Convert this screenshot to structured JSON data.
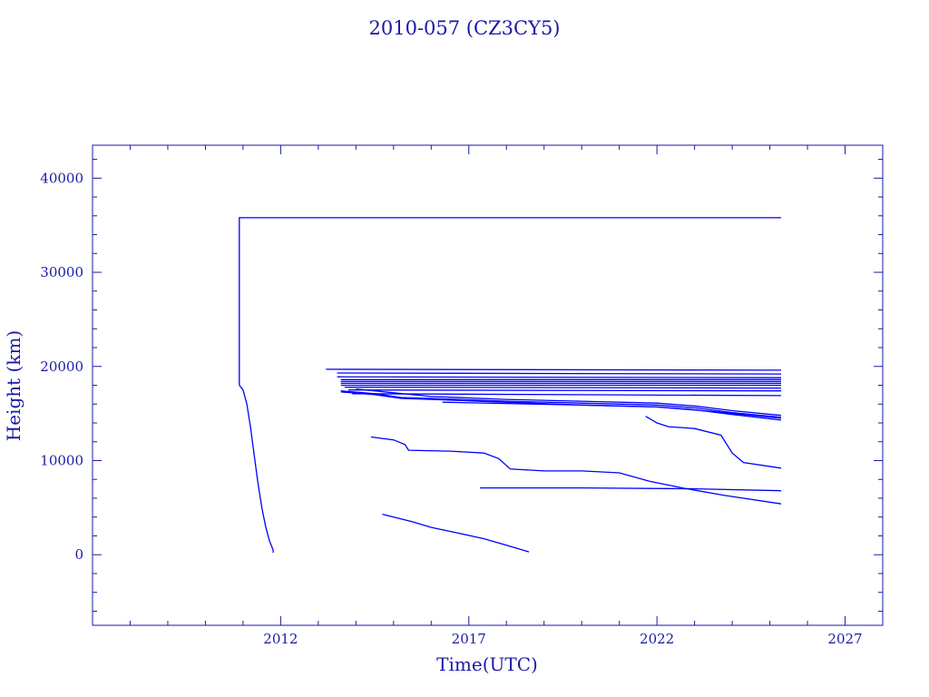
{
  "chart_data": {
    "type": "line",
    "title": "2010-057 (CZ3CY5)",
    "xlabel": "Time(UTC)",
    "ylabel": "Height (km)",
    "xlim": [
      2007.0,
      2028.0
    ],
    "ylim": [
      -7500,
      43500
    ],
    "xticks": [
      2012,
      2017,
      2022,
      2027
    ],
    "yticks": [
      0,
      10000,
      20000,
      30000,
      40000
    ],
    "xtick_labels": [
      "2012",
      "2017",
      "2022",
      "2027"
    ],
    "ytick_labels": [
      "0",
      "10000",
      "20000",
      "30000",
      "40000"
    ],
    "grid": false,
    "line_color": "#0000ff",
    "series": [
      {
        "x": [
          2010.9,
          2010.9,
          2025.3
        ],
        "y": [
          18000,
          35800,
          35800
        ]
      },
      {
        "x": [
          2010.9,
          2011.0,
          2011.1,
          2011.2,
          2011.3,
          2011.4,
          2011.5,
          2011.6,
          2011.7,
          2011.8,
          2011.8
        ],
        "y": [
          18000,
          17500,
          16000,
          13500,
          10500,
          7500,
          5000,
          3000,
          1500,
          500,
          200
        ]
      },
      {
        "x": [
          2014.7,
          2015.5,
          2016.0,
          2016.7,
          2017.4,
          2018.0,
          2018.6
        ],
        "y": [
          4300,
          3500,
          2900,
          2300,
          1700,
          1000,
          300
        ]
      },
      {
        "x": [
          2014.4,
          2015.0,
          2015.3,
          2015.4,
          2016.5,
          2017.4,
          2017.8,
          2018.1,
          2019.0,
          2020.0,
          2021.0,
          2021.8,
          2022.8,
          2023.8,
          2025.3
        ],
        "y": [
          12500,
          12200,
          11700,
          11100,
          11000,
          10800,
          10200,
          9100,
          8900,
          8900,
          8700,
          7800,
          7000,
          6300,
          5400
        ]
      },
      {
        "x": [
          2017.3,
          2020.0,
          2023.0,
          2025.3
        ],
        "y": [
          7100,
          7100,
          7000,
          6800
        ]
      },
      {
        "x": [
          2021.7,
          2022.0,
          2022.3,
          2023.0,
          2023.7,
          2024.0,
          2024.3,
          2025.3
        ],
        "y": [
          14700,
          14000,
          13600,
          13400,
          12700,
          10800,
          9800,
          9200
        ]
      },
      {
        "x": [
          2013.2,
          2025.3
        ],
        "y": [
          19700,
          19600
        ]
      },
      {
        "x": [
          2013.5,
          2025.3
        ],
        "y": [
          19300,
          19200
        ]
      },
      {
        "x": [
          2013.5,
          2025.3
        ],
        "y": [
          18900,
          18800
        ]
      },
      {
        "x": [
          2013.6,
          2025.3
        ],
        "y": [
          18600,
          18600
        ]
      },
      {
        "x": [
          2013.6,
          2025.3
        ],
        "y": [
          18400,
          18400
        ]
      },
      {
        "x": [
          2013.6,
          2025.3
        ],
        "y": [
          18200,
          18200
        ]
      },
      {
        "x": [
          2013.6,
          2025.3
        ],
        "y": [
          18000,
          18000
        ]
      },
      {
        "x": [
          2013.7,
          2025.3
        ],
        "y": [
          17800,
          17700
        ]
      },
      {
        "x": [
          2013.8,
          2025.3
        ],
        "y": [
          17500,
          17400
        ]
      },
      {
        "x": [
          2013.9,
          2025.3
        ],
        "y": [
          17100,
          16900
        ]
      },
      {
        "x": [
          2013.6,
          2014.5,
          2015.2,
          2016.0,
          2018.0,
          2020.0,
          2022.0,
          2023.0,
          2024.0,
          2025.3
        ],
        "y": [
          17400,
          17100,
          16700,
          16600,
          16300,
          16100,
          15900,
          15600,
          15100,
          14600
        ]
      },
      {
        "x": [
          2013.6,
          2014.5,
          2015.2,
          2016.0,
          2018.0,
          2020.0,
          2022.0,
          2023.0,
          2024.0,
          2025.3
        ],
        "y": [
          17300,
          17000,
          16600,
          16500,
          16200,
          15900,
          15700,
          15400,
          14900,
          14300
        ]
      },
      {
        "x": [
          2014.0,
          2015.0,
          2016.0,
          2018.0,
          2020.0,
          2022.0,
          2023.0,
          2024.0,
          2025.3
        ],
        "y": [
          17600,
          17200,
          16800,
          16500,
          16300,
          16100,
          15800,
          15300,
          14800
        ]
      },
      {
        "x": [
          2016.3,
          2020.0,
          2022.0,
          2023.5,
          2025.3
        ],
        "y": [
          16200,
          15900,
          15700,
          15200,
          14500
        ]
      }
    ]
  }
}
